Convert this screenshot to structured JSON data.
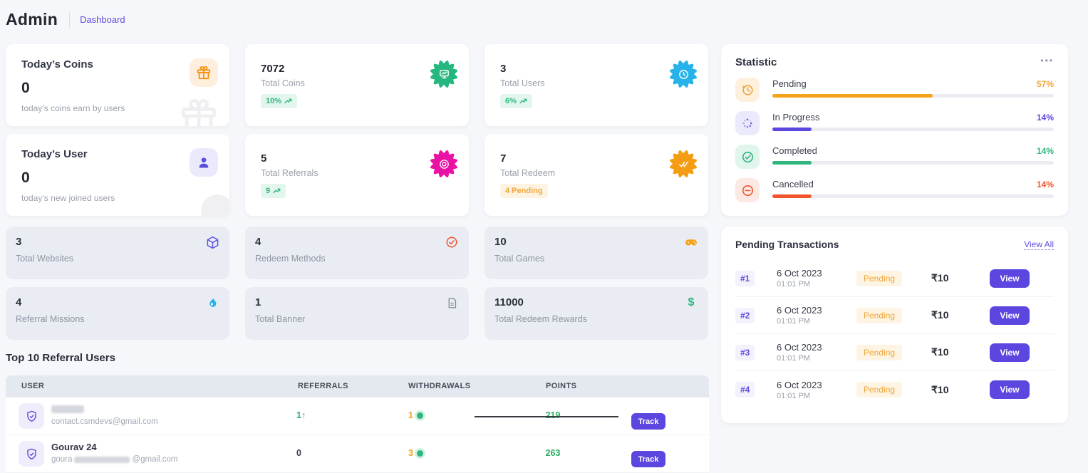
{
  "header": {
    "title": "Admin",
    "breadcrumb": "Dashboard"
  },
  "cards": {
    "todays_coins": {
      "title": "Today’s Coins",
      "value": "0",
      "subtitle": "today’s coins earn by users"
    },
    "total_coins": {
      "value": "7072",
      "label": "Total Coins",
      "badge": "10%"
    },
    "total_users": {
      "value": "3",
      "label": "Total Users",
      "badge": "6%"
    },
    "todays_user": {
      "title": "Today’s User",
      "value": "0",
      "subtitle": "today’s new joined users"
    },
    "total_referrals": {
      "value": "5",
      "label": "Total Referrals",
      "badge": "9"
    },
    "total_redeem": {
      "value": "7",
      "label": "Total Redeem",
      "badge": "4 Pending"
    }
  },
  "mini_cards": [
    {
      "value": "3",
      "label": "Total Websites",
      "icon": "cube-icon"
    },
    {
      "value": "4",
      "label": "Redeem Methods",
      "icon": "check-circle-icon"
    },
    {
      "value": "10",
      "label": "Total Games",
      "icon": "gamepad-icon"
    },
    {
      "value": "4",
      "label": "Referral Missions",
      "icon": "mission-drop-icon"
    },
    {
      "value": "1",
      "label": "Total Banner",
      "icon": "file-icon"
    },
    {
      "value": "11000",
      "label": "Total Redeem Rewards",
      "icon": "dollar-icon",
      "dollar": "$"
    }
  ],
  "statistic": {
    "title": "Statistic",
    "menu": "•••",
    "rows": [
      {
        "label": "Pending",
        "pct": 57,
        "pct_label": "57%",
        "color": "#f5a21c"
      },
      {
        "label": "In Progress",
        "pct": 14,
        "pct_label": "14%",
        "color": "#5b47e0"
      },
      {
        "label": "Completed",
        "pct": 14,
        "pct_label": "14%",
        "color": "#2eb67d"
      },
      {
        "label": "Cancelled",
        "pct": 14,
        "pct_label": "14%",
        "color": "#f2552c"
      }
    ]
  },
  "pending": {
    "title": "Pending Transactions",
    "view_all": "View All",
    "rows": [
      {
        "id": "#1",
        "date": "6 Oct 2023",
        "time": "01:01 PM",
        "status": "Pending",
        "amount": "₹10",
        "action": "View"
      },
      {
        "id": "#2",
        "date": "6 Oct 2023",
        "time": "01:01 PM",
        "status": "Pending",
        "amount": "₹10",
        "action": "View"
      },
      {
        "id": "#3",
        "date": "6 Oct 2023",
        "time": "01:01 PM",
        "status": "Pending",
        "amount": "₹10",
        "action": "View"
      },
      {
        "id": "#4",
        "date": "6 Oct 2023",
        "time": "01:01 PM",
        "status": "Pending",
        "amount": "₹10",
        "action": "View"
      }
    ]
  },
  "referrals": {
    "title": "Top 10 Referral Users",
    "columns": [
      "USER",
      "REFERRALS",
      "WITHDRAWALS",
      "POINTS"
    ],
    "rows": [
      {
        "email": "contact.csmdevs@gmail.com",
        "referrals": "1",
        "referrals_trend": "↑",
        "withdrawals": "1",
        "points": "219",
        "action": "Track"
      },
      {
        "name": "Gourav 24",
        "email_start": "goura",
        "email_end": "@gmail.com",
        "referrals": "0",
        "withdrawals": "3",
        "points": "263",
        "action": "Track"
      }
    ]
  },
  "colors": {
    "accent_purple": "#5b47e0",
    "green": "#2eb67d",
    "orange": "#f5a21c",
    "red": "#f2552c",
    "magenta": "#ea12a4",
    "blue": "#27b3ea",
    "page_bg": "#f6f7fa"
  }
}
